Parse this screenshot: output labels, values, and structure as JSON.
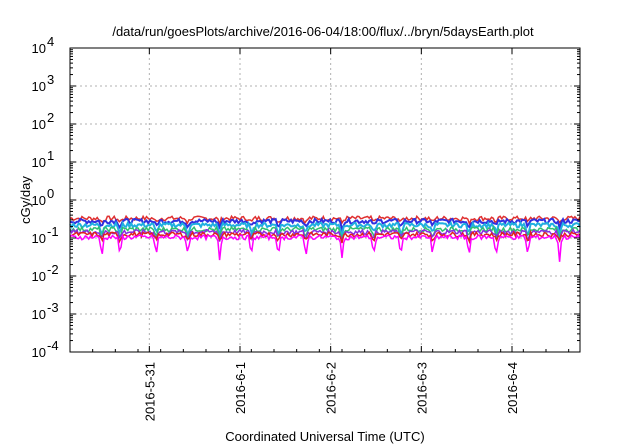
{
  "chart_data": {
    "type": "line",
    "title": "/data/run/goesPlots/archive/2016-06-04/18:00/flux/../bryn/5daysEarth.plot",
    "xlabel": "Coordinated Universal Time (UTC)",
    "ylabel": "cGy/day",
    "log_y": true,
    "ylim": [
      0.0001,
      10000
    ],
    "xlim_days": [
      "2016-05-30 03:00",
      "2016-06-04 18:00"
    ],
    "y_ticks": [
      {
        "base": "10",
        "exp": "-4"
      },
      {
        "base": "10",
        "exp": "-3"
      },
      {
        "base": "10",
        "exp": "-2"
      },
      {
        "base": "10",
        "exp": "-1"
      },
      {
        "base": "10",
        "exp": "0"
      },
      {
        "base": "10",
        "exp": "1"
      },
      {
        "base": "10",
        "exp": "2"
      },
      {
        "base": "10",
        "exp": "3"
      },
      {
        "base": "10",
        "exp": "4"
      }
    ],
    "x_ticks": [
      "2016-5-31",
      "2016-6-1",
      "2016-6-2",
      "2016-6-3",
      "2016-6-4"
    ],
    "grid": true,
    "series": [
      {
        "color": "#e03030",
        "level": 0.33,
        "dip": 0.75
      },
      {
        "color": "#3030e0",
        "level": 0.28,
        "dip": 0.7
      },
      {
        "color": "#20b0e0",
        "level": 0.22,
        "dip": 0.55
      },
      {
        "color": "#30c070",
        "level": 0.17,
        "dip": 0.6
      },
      {
        "color": "#8a2be2",
        "level": 0.145,
        "dip": 0.62
      },
      {
        "color": "#e02020",
        "level": 0.125,
        "dip": 0.65
      },
      {
        "color": "#ff00ff",
        "level": 0.105,
        "dip": 0.25
      }
    ]
  }
}
